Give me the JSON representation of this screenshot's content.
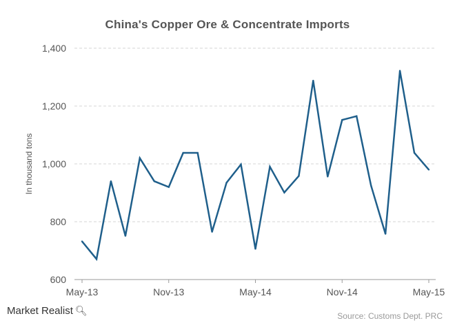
{
  "chart_data": {
    "type": "line",
    "title": "China's Copper Ore & Concentrate Imports",
    "ylabel": "In thousand tons",
    "xlabel": "",
    "ylim": [
      600,
      1400
    ],
    "yticks": [
      600,
      800,
      1000,
      1200,
      1400
    ],
    "ytick_labels": [
      "600",
      "800",
      "1,000",
      "1,200",
      "1,400"
    ],
    "xtick_labels": [
      "May-13",
      "Nov-13",
      "May-14",
      "Nov-14",
      "May-15"
    ],
    "xtick_indices": [
      0,
      6,
      12,
      18,
      24
    ],
    "grid": true,
    "color": "#1f5f8b",
    "x": [
      "May-13",
      "Jun-13",
      "Jul-13",
      "Aug-13",
      "Sep-13",
      "Oct-13",
      "Nov-13",
      "Dec-13",
      "Jan-14",
      "Feb-14",
      "Mar-14",
      "Apr-14",
      "May-14",
      "Jun-14",
      "Jul-14",
      "Aug-14",
      "Sep-14",
      "Oct-14",
      "Nov-14",
      "Dec-14",
      "Jan-15",
      "Feb-15",
      "Mar-15",
      "Apr-15",
      "May-15"
    ],
    "values": [
      732,
      671,
      940,
      751,
      1020,
      940,
      920,
      1038,
      1038,
      765,
      935,
      998,
      706,
      990,
      901,
      958,
      1288,
      956,
      1152,
      1165,
      925,
      758,
      1322,
      1038,
      980
    ]
  },
  "branding": {
    "logo_text": "Market Realist",
    "logo_icon": "magnifier-icon"
  },
  "source": "Source: Customs Dept. PRC"
}
